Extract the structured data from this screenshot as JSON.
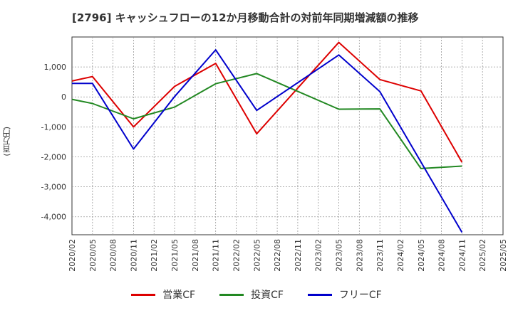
{
  "title": "[2796]  キャッシュフローの12か月移動合計の対前年同期増減額の推移",
  "colors": {
    "operating": "#dd0000",
    "investing": "#228822",
    "free": "#0000cc"
  },
  "chart_data": {
    "type": "line",
    "title": "[2796]  キャッシュフローの12か月移動合計の対前年同期増減額の推移",
    "xlabel": "",
    "ylabel": "(百万円)",
    "x": [
      "2020/02",
      "2020/05",
      "2020/08",
      "2020/11",
      "2021/02",
      "2021/05",
      "2021/08",
      "2021/11",
      "2022/02",
      "2022/05",
      "2022/08",
      "2022/11",
      "2023/02",
      "2023/05",
      "2023/08",
      "2023/11",
      "2024/02",
      "2024/05",
      "2024/08",
      "2024/11",
      "2025/02",
      "2025/05"
    ],
    "ylim": [
      -4600,
      2000
    ],
    "yticks": [
      1000,
      0,
      -1000,
      -2000,
      -3000,
      -4000
    ],
    "ytick_labels": [
      "1,000",
      "0",
      "-1,000",
      "-2,000",
      "-3,000",
      "-4,000"
    ],
    "grid": true,
    "legend_position": "bottom",
    "series": [
      {
        "name": "営業CF",
        "color": "#dd0000",
        "values": [
          530,
          680,
          null,
          -1000,
          null,
          350,
          null,
          1120,
          null,
          -1230,
          null,
          null,
          null,
          1820,
          null,
          580,
          null,
          200,
          null,
          -2180,
          null,
          null
        ]
      },
      {
        "name": "投資CF",
        "color": "#228822",
        "values": [
          -80,
          -220,
          null,
          -730,
          null,
          -340,
          null,
          440,
          null,
          780,
          null,
          null,
          null,
          -410,
          null,
          -400,
          null,
          -2390,
          null,
          -2310,
          null,
          null
        ]
      },
      {
        "name": "フリーCF",
        "color": "#0000cc",
        "values": [
          450,
          450,
          null,
          -1740,
          null,
          10,
          null,
          1570,
          null,
          -450,
          null,
          null,
          null,
          1400,
          null,
          180,
          null,
          null,
          null,
          -4520,
          null,
          null
        ]
      }
    ]
  }
}
